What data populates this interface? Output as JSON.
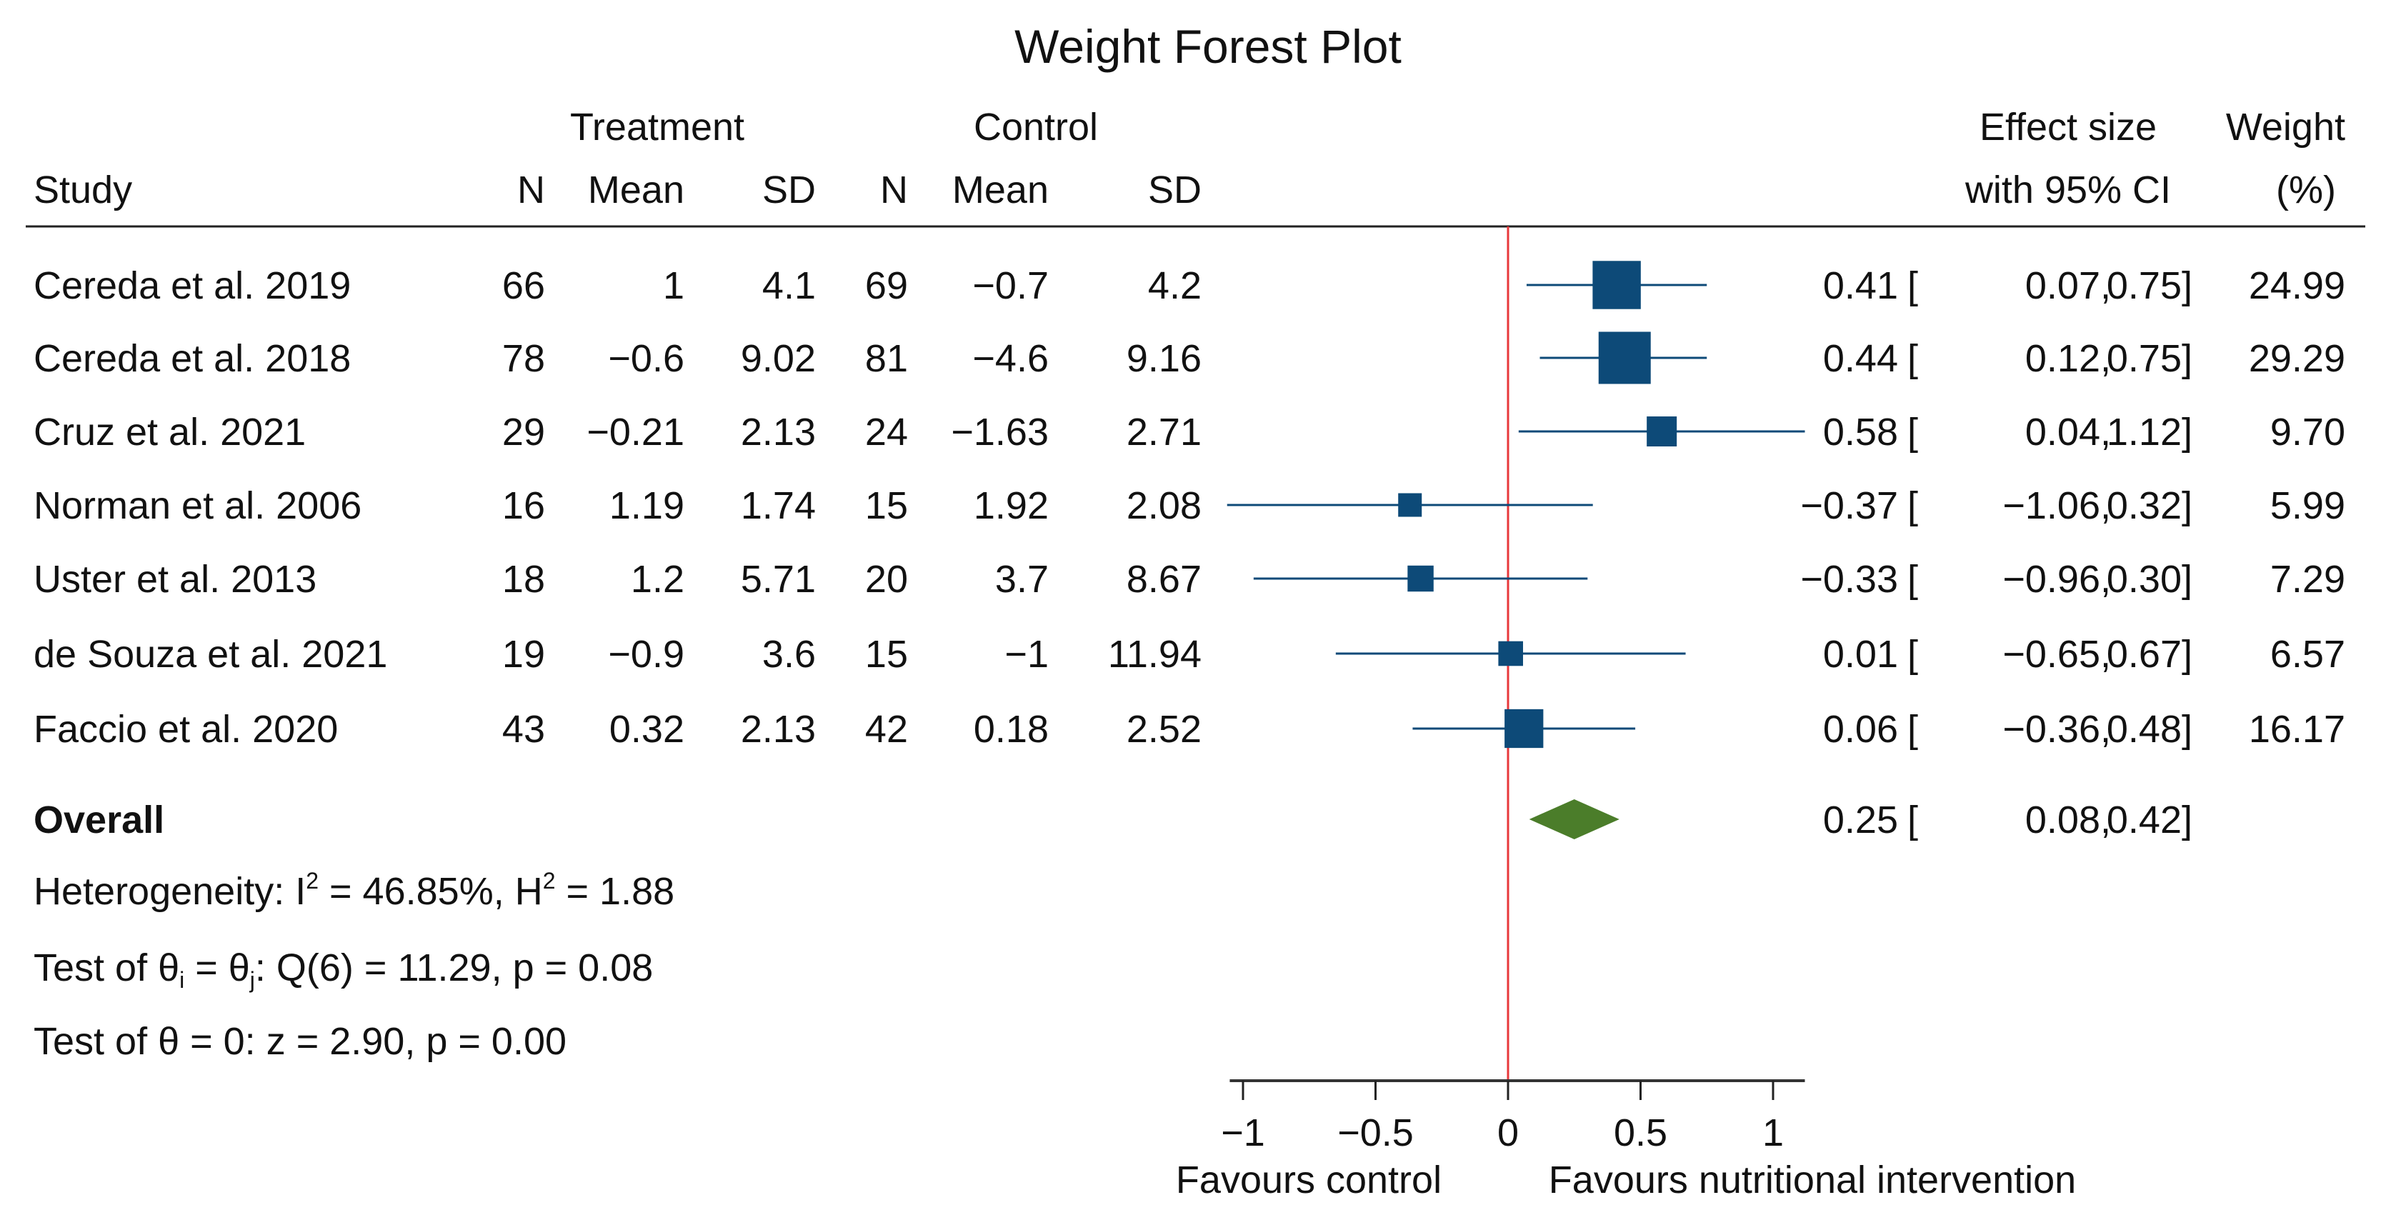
{
  "chart_data": {
    "type": "forest",
    "title": "Weight Forest Plot",
    "group_headers": {
      "treatment": "Treatment",
      "control": "Control",
      "effect": "Effect size",
      "weight": "Weight"
    },
    "columns": {
      "study": "Study",
      "n": "N",
      "mean": "Mean",
      "sd": "SD",
      "effect_ci": "with 95% CI",
      "weight_pct": "(%)"
    },
    "studies": [
      {
        "study": "Cereda et al. 2019",
        "t_n": "66",
        "t_mean": "1",
        "t_sd": "4.1",
        "c_n": "69",
        "c_mean": "−0.7",
        "c_sd": "4.2",
        "es": 0.41,
        "lo": 0.07,
        "hi": 0.75,
        "es_label": "0.41",
        "lo_label": "0.07,",
        "hi_label": "0.75]",
        "weight": "24.99"
      },
      {
        "study": "Cereda et al. 2018",
        "t_n": "78",
        "t_mean": "−0.6",
        "t_sd": "9.02",
        "c_n": "81",
        "c_mean": "−4.6",
        "c_sd": "9.16",
        "es": 0.44,
        "lo": 0.12,
        "hi": 0.75,
        "es_label": "0.44",
        "lo_label": "0.12,",
        "hi_label": "0.75]",
        "weight": "29.29"
      },
      {
        "study": "Cruz et al. 2021",
        "t_n": "29",
        "t_mean": "−0.21",
        "t_sd": "2.13",
        "c_n": "24",
        "c_mean": "−1.63",
        "c_sd": "2.71",
        "es": 0.58,
        "lo": 0.04,
        "hi": 1.12,
        "es_label": "0.58",
        "lo_label": "0.04,",
        "hi_label": "1.12]",
        "weight": "9.70"
      },
      {
        "study": "Norman et al. 2006",
        "t_n": "16",
        "t_mean": "1.19",
        "t_sd": "1.74",
        "c_n": "15",
        "c_mean": "1.92",
        "c_sd": "2.08",
        "es": -0.37,
        "lo": -1.06,
        "hi": 0.32,
        "es_label": "−0.37",
        "lo_label": "−1.06,",
        "hi_label": "0.32]",
        "weight": "5.99"
      },
      {
        "study": "Uster et al. 2013",
        "t_n": "18",
        "t_mean": "1.2",
        "t_sd": "5.71",
        "c_n": "20",
        "c_mean": "3.7",
        "c_sd": "8.67",
        "es": -0.33,
        "lo": -0.96,
        "hi": 0.3,
        "es_label": "−0.33",
        "lo_label": "−0.96,",
        "hi_label": "0.30]",
        "weight": "7.29"
      },
      {
        "study": "de Souza et al. 2021",
        "t_n": "19",
        "t_mean": "−0.9",
        "t_sd": "3.6",
        "c_n": "15",
        "c_mean": "−1",
        "c_sd": "11.94",
        "es": 0.01,
        "lo": -0.65,
        "hi": 0.67,
        "es_label": "0.01",
        "lo_label": "−0.65,",
        "hi_label": "0.67]",
        "weight": "6.57"
      },
      {
        "study": "Faccio et al. 2020",
        "t_n": "43",
        "t_mean": "0.32",
        "t_sd": "2.13",
        "c_n": "42",
        "c_mean": "0.18",
        "c_sd": "2.52",
        "es": 0.06,
        "lo": -0.36,
        "hi": 0.48,
        "es_label": "0.06",
        "lo_label": "−0.36,",
        "hi_label": "0.48]",
        "weight": "16.17"
      }
    ],
    "overall": {
      "label": "Overall",
      "es": 0.25,
      "lo": 0.08,
      "hi": 0.42,
      "es_label": "0.25",
      "lo_label": "0.08,",
      "hi_label": "0.42]"
    },
    "stats": {
      "heterogeneity": {
        "prefix": "Heterogeneity: I",
        "sup1": "2",
        "mid": " = 46.85%, H",
        "sup2": "2",
        "suffix": " = 1.88"
      },
      "test_between": {
        "prefix": "Test of θ",
        "sub1": "i",
        "mid": " = θ",
        "sub2": "j",
        "suffix": ": Q(6) = 11.29, p = 0.08"
      },
      "test_zero": "Test of θ = 0: z = 2.90, p = 0.00"
    },
    "x_axis": {
      "ticks": [
        -1,
        -0.5,
        0,
        0.5,
        1
      ],
      "tick_labels": [
        "−1",
        "−0.5",
        "0",
        "0.5",
        "1"
      ],
      "range": [
        -1.05,
        1.12
      ],
      "ref_line": 0
    },
    "favours": {
      "left": "Favours control",
      "right": "Favours nutritional intervention"
    },
    "colors": {
      "marker": "#0d4a78",
      "diamond": "#4b7d2a",
      "ref_line": "#e8383b",
      "title": "#1f3d6b",
      "text": "#111111"
    }
  }
}
